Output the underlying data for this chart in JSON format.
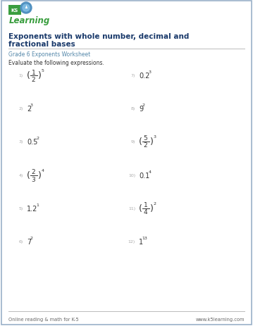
{
  "bg_color": "#ffffff",
  "border_color": "#9ab0c8",
  "title_line1": "Exponents with whole number, decimal and",
  "title_line2": "fractional bases",
  "subtitle": "Grade 6 Exponents Worksheet",
  "instruction": "Evaluate the following expressions.",
  "title_color": "#1a3a6b",
  "subtitle_color": "#5588aa",
  "instruction_color": "#333333",
  "footer_left": "Online reading & math for K-5",
  "footer_right": "www.k5learning.com",
  "footer_color": "#666666",
  "problems_left": [
    {
      "num": "1)",
      "type": "fraction_exp",
      "num_val": "1",
      "den_val": "2",
      "exp_val": "5"
    },
    {
      "num": "2)",
      "type": "simple_exp",
      "base": "2",
      "exp_val": "3"
    },
    {
      "num": "3)",
      "type": "decimal_exp",
      "base": "0.5",
      "exp_val": "2"
    },
    {
      "num": "4)",
      "type": "fraction_exp",
      "num_val": "2",
      "den_val": "3",
      "exp_val": "4"
    },
    {
      "num": "5)",
      "type": "decimal_exp",
      "base": "1.2",
      "exp_val": "1"
    },
    {
      "num": "6)",
      "type": "simple_exp",
      "base": "7",
      "exp_val": "2"
    }
  ],
  "problems_right": [
    {
      "num": "7)",
      "type": "decimal_exp",
      "base": "0.2",
      "exp_val": "3"
    },
    {
      "num": "8)",
      "type": "simple_exp",
      "base": "9",
      "exp_val": "2"
    },
    {
      "num": "9)",
      "type": "fraction_exp",
      "num_val": "5",
      "den_val": "2",
      "exp_val": "3"
    },
    {
      "num": "10)",
      "type": "decimal_exp",
      "base": "0.1",
      "exp_val": "4"
    },
    {
      "num": "11)",
      "type": "fraction_exp",
      "num_val": "1",
      "den_val": "4",
      "exp_val": "2"
    },
    {
      "num": "12)",
      "type": "simple_exp",
      "base": "1",
      "exp_val": "13"
    }
  ],
  "logo_green": "#3a9e3f",
  "logo_blue": "#2060a0",
  "num_color": "#aaaaaa",
  "expr_color": "#333333"
}
